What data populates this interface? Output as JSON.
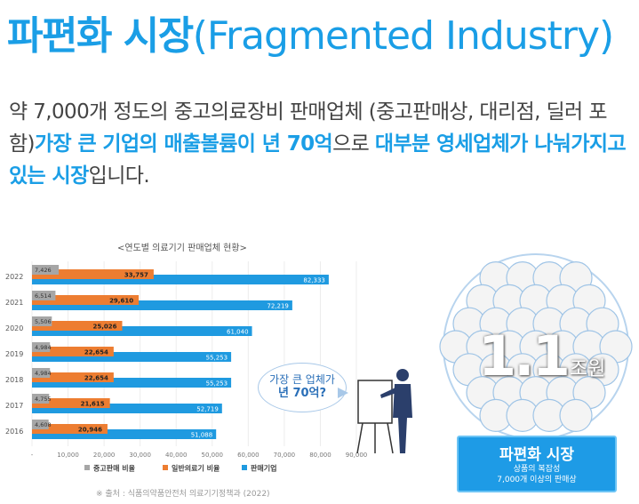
{
  "title": {
    "ko": "파편화 시장",
    "en": "(Fragmented Industry)"
  },
  "description": {
    "part1": "약 7,000개 정도의 중고의료장비 판매업체 (중고판매상, 대리점, 딜러 포함)",
    "part2": "가장 큰 기업의 매출볼륨이 년 70억",
    "part3": "으로 ",
    "part4": "대부분 영세업체가 나눠가지고 있는 시장",
    "part5": "입니다."
  },
  "chart_title": "<연도별 의료기기 판매업체 현황>",
  "source": "※ 출처 : 식품의약품안전처 의료기기정책과 (2022)",
  "chart_data": {
    "type": "bar",
    "orientation": "horizontal",
    "categories": [
      "2022",
      "2021",
      "2020",
      "2019",
      "2018",
      "2017",
      "2016"
    ],
    "series": [
      {
        "name": "중고판매 비율",
        "color": "#a6a6a6",
        "values": [
          7426,
          6514,
          5506,
          4984,
          4984,
          4755,
          4608
        ],
        "labels": [
          "7,426",
          "6,514",
          "5,506",
          "4,984",
          "4,984",
          "4,755",
          "4,608"
        ]
      },
      {
        "name": "일반의료기 비율",
        "color": "#ed7d31",
        "values": [
          33757,
          29610,
          25026,
          22654,
          22654,
          21615,
          20946
        ],
        "labels": [
          "33,757",
          "29,610",
          "25,026",
          "22,654",
          "22,654",
          "21,615",
          "20,946"
        ]
      },
      {
        "name": "판매기업",
        "color": "#1f9ae0",
        "values": [
          82333,
          72219,
          61040,
          55253,
          55253,
          52719,
          51088
        ],
        "labels": [
          "82,333",
          "72,219",
          "61,040",
          "55,253",
          "55,253",
          "52,719",
          "51,088"
        ]
      }
    ],
    "xlim": [
      0,
      90000
    ],
    "x_ticks": [
      "-",
      "10,000",
      "20,000",
      "30,000",
      "40,000",
      "50,000",
      "60,000",
      "70,000",
      "80,000",
      "90,000"
    ]
  },
  "bubble": {
    "line1": "가장 큰 업체가",
    "line2": "년 70억?"
  },
  "market": {
    "value": "1.1",
    "unit": "조원",
    "box_title": "파편화 시장",
    "box_line1": "상품의 복잡성",
    "box_line2": "7,000개 이상의 판매상"
  },
  "colors": {
    "accent": "#1a9ee6",
    "gray": "#a6a6a6",
    "orange": "#ed7d31",
    "blue": "#1f9ae0"
  }
}
